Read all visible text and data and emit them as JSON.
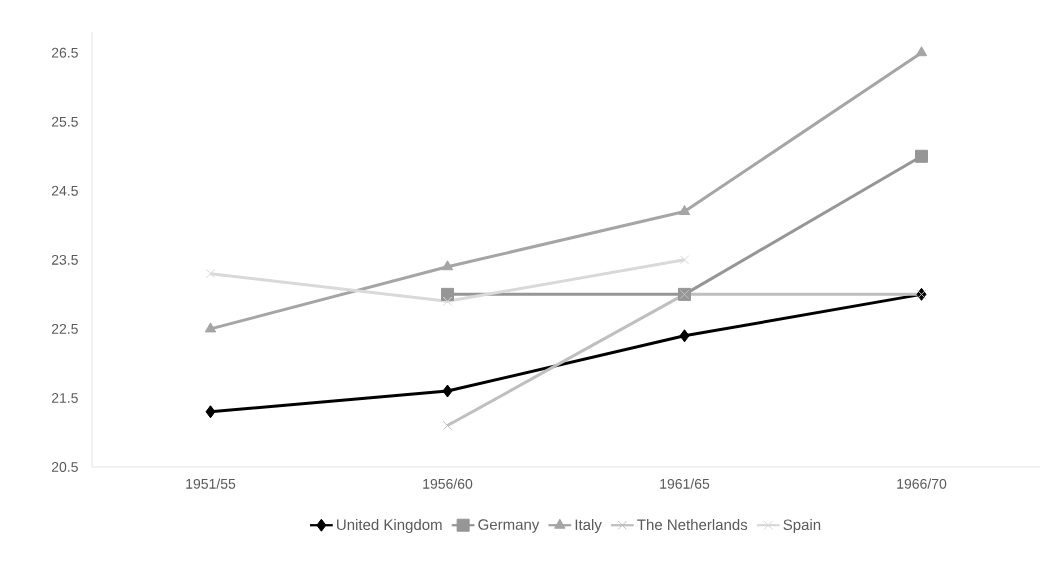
{
  "chart_data": {
    "type": "line",
    "categories": [
      "1951/55",
      "1956/60",
      "1961/65",
      "1966/70"
    ],
    "series": [
      {
        "name": "United Kingdom",
        "color": "#000000",
        "marker": "diamond",
        "values": [
          21.3,
          21.6,
          22.4,
          23.0
        ]
      },
      {
        "name": "Germany",
        "color": "#969696",
        "marker": "square",
        "values": [
          null,
          23.0,
          23.0,
          25.0
        ]
      },
      {
        "name": "Italy",
        "color": "#a5a5a5",
        "marker": "triangle",
        "values": [
          22.5,
          23.4,
          24.2,
          26.5
        ]
      },
      {
        "name": "The Netherlands",
        "color": "#bfbfbf",
        "marker": "cross",
        "values": [
          null,
          21.1,
          23.0,
          23.0
        ]
      },
      {
        "name": "Spain",
        "color": "#d9d9d9",
        "marker": "cross",
        "values": [
          23.3,
          22.9,
          23.5,
          null
        ]
      }
    ],
    "ylim": [
      20.5,
      26.8
    ],
    "yticks": [
      20.5,
      21.5,
      22.5,
      23.5,
      24.5,
      25.5,
      26.5
    ],
    "grid": false,
    "legend": "bottom",
    "line_style": "solid"
  }
}
